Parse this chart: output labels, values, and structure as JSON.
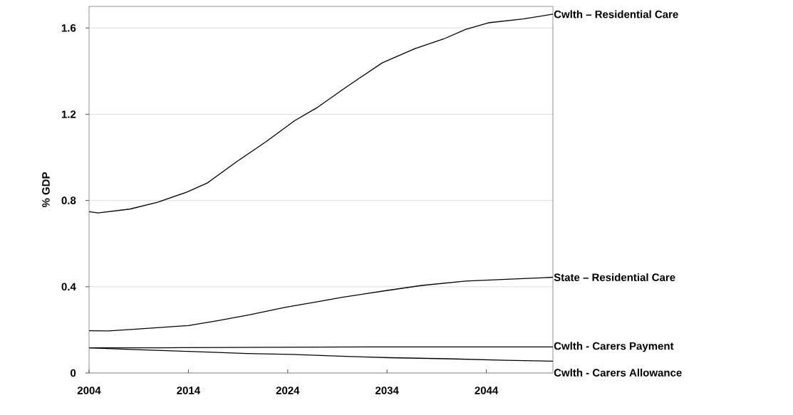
{
  "chart_data": {
    "type": "line",
    "ylabel": "% GDP",
    "xlim": [
      2004,
      2050.7
    ],
    "xticks": [
      2004,
      2014,
      2024,
      2034,
      2044
    ],
    "ylim": [
      0,
      1.7
    ],
    "yticks": [
      0,
      0.4,
      0.8,
      1.2,
      1.6
    ],
    "grid": "y",
    "line_style": "solid",
    "series": [
      {
        "name": "Cwlth – Residential Care",
        "color": "#000000",
        "x": [
          2004,
          2004.9,
          2008.1,
          2010.9,
          2013.8,
          2015.9,
          2018.9,
          2021.8,
          2024.7,
          2026.9,
          2029.8,
          2033.5,
          2036.8,
          2039.7,
          2041.9,
          2044.2,
          2047.7,
          2050.7
        ],
        "values": [
          0.748,
          0.742,
          0.76,
          0.792,
          0.838,
          0.881,
          0.981,
          1.072,
          1.17,
          1.229,
          1.323,
          1.438,
          1.504,
          1.549,
          1.593,
          1.624,
          1.642,
          1.664
        ]
      },
      {
        "name": "State – Residential Care",
        "color": "#000000",
        "x": [
          2004,
          2006,
          2009,
          2014,
          2017,
          2020.2,
          2023.7,
          2027.2,
          2029.5,
          2033.9,
          2037.5,
          2041.9,
          2046.4,
          2050.7
        ],
        "values": [
          0.196,
          0.195,
          0.204,
          0.22,
          0.243,
          0.27,
          0.304,
          0.332,
          0.351,
          0.382,
          0.406,
          0.426,
          0.435,
          0.444
        ]
      },
      {
        "name": "Cwlth - Carers Payment",
        "color": "#000000",
        "x": [
          2004,
          2011,
          2033,
          2050.7
        ],
        "values": [
          0.117,
          0.117,
          0.121,
          0.121
        ]
      },
      {
        "name": "Cwlth - Carers Allowance",
        "color": "#000000",
        "x": [
          2004,
          2008.1,
          2014,
          2019.9,
          2024.4,
          2029.8,
          2034.3,
          2040.1,
          2045.9,
          2050.7
        ],
        "values": [
          0.117,
          0.109,
          0.1,
          0.09,
          0.086,
          0.077,
          0.071,
          0.066,
          0.059,
          0.055
        ]
      }
    ]
  }
}
